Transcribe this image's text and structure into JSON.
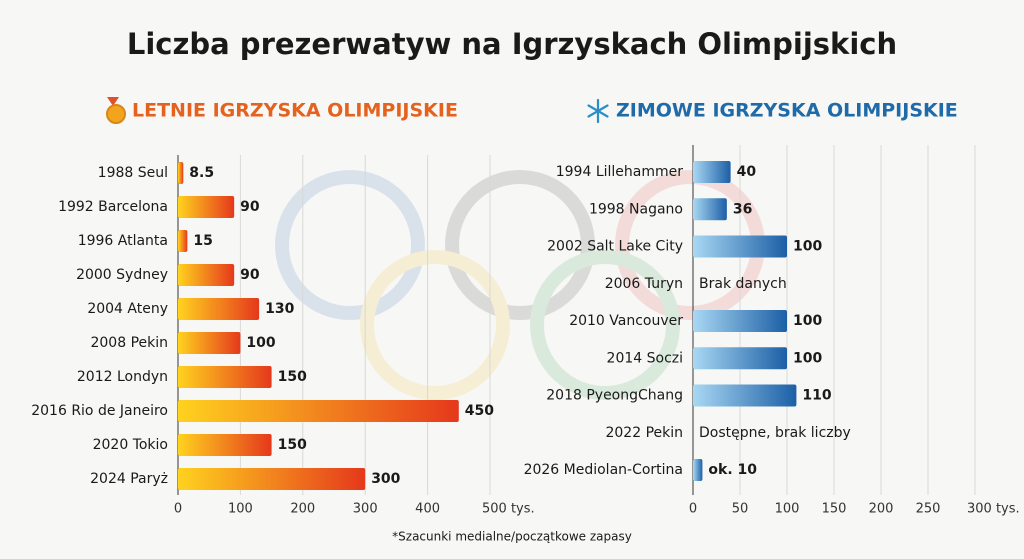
{
  "title": "Liczba prezerwatyw na Igrzyskach Olimpijskich",
  "footnote": "*Szacunki medialne/początkowe zapasy",
  "chart_data": [
    {
      "type": "bar",
      "orientation": "horizontal",
      "title": "LETNIE IGRZYSKA OLIMPIJSKIE",
      "categories": [
        "1988 Seul",
        "1992 Barcelona",
        "1996 Atlanta",
        "2000 Sydney",
        "2004 Ateny",
        "2008 Pekin",
        "2012 Londyn",
        "2016 Rio de Janeiro",
        "2020 Tokio",
        "2024 Paryż"
      ],
      "values": [
        8.5,
        90,
        15,
        90,
        130,
        100,
        150,
        450,
        150,
        300
      ],
      "colors": [
        "#ffd21f",
        "#e5381c"
      ],
      "title_color": "#e4621d",
      "xlim": [
        0,
        500
      ],
      "xticks": [
        0,
        100,
        200,
        300,
        400,
        {
          "value": 500,
          "label": "500 tys."
        }
      ],
      "grid": true
    },
    {
      "type": "bar",
      "orientation": "horizontal",
      "title": "ZIMOWE IGRZYSKA OLIMPIJSKIE",
      "categories": [
        "1994 Lillehammer",
        "1998 Nagano",
        "2002 Salt Lake City",
        "2006 Turyn",
        "2010 Vancouver",
        "2014 Soczi",
        "2018 PyeongChang",
        "2022 Pekin",
        "2026 Mediolan-Cortina"
      ],
      "values": [
        40,
        36,
        100,
        null,
        100,
        100,
        110,
        null,
        10
      ],
      "value_labels": [
        "40",
        "36",
        "100",
        "Brak danych",
        "100",
        "100",
        "110",
        "Dostępne, brak liczby",
        "ok. 10"
      ],
      "colors": [
        "#a9d8f3",
        "#1c5fa6"
      ],
      "title_color": "#1f6aa8",
      "xlim": [
        0,
        300
      ],
      "xticks": [
        0,
        50,
        100,
        150,
        200,
        250,
        {
          "value": 300,
          "label": "300 tys."
        }
      ],
      "grid": true
    }
  ]
}
